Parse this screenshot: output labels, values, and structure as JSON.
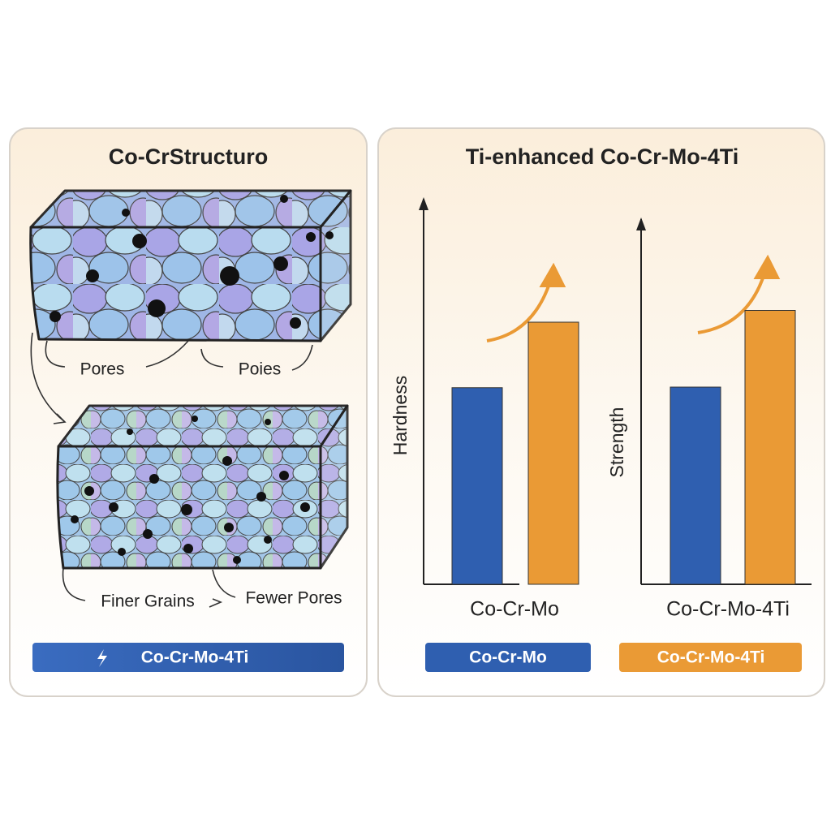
{
  "left_panel": {
    "title": "Co-CrStructuro",
    "top_labels": [
      "Pores",
      "Poies"
    ],
    "bottom_labels": [
      "Finer Grains",
      "Fewer Pores"
    ],
    "badge": "Co-Cr-Mo-4Ti"
  },
  "right_panel": {
    "title": "Ti-enhanced Co-Cr-Mo-4Ti",
    "legend": [
      {
        "name": "Co-Cr-Mo",
        "color": "#2f5fb0"
      },
      {
        "name": "Co-Cr-Mo-4Ti",
        "color": "#ea9a35"
      }
    ]
  },
  "chart_data": [
    {
      "type": "bar",
      "y_label": "Hardness",
      "x_label": "Co-Cr-Mo",
      "values": [
        51,
        68
      ],
      "ylim": [
        0,
        100
      ]
    },
    {
      "type": "bar",
      "y_label": "Strength",
      "x_label": "Co-Cr-Mo-4Ti",
      "values": [
        54,
        75
      ],
      "ylim": [
        0,
        100
      ]
    }
  ]
}
